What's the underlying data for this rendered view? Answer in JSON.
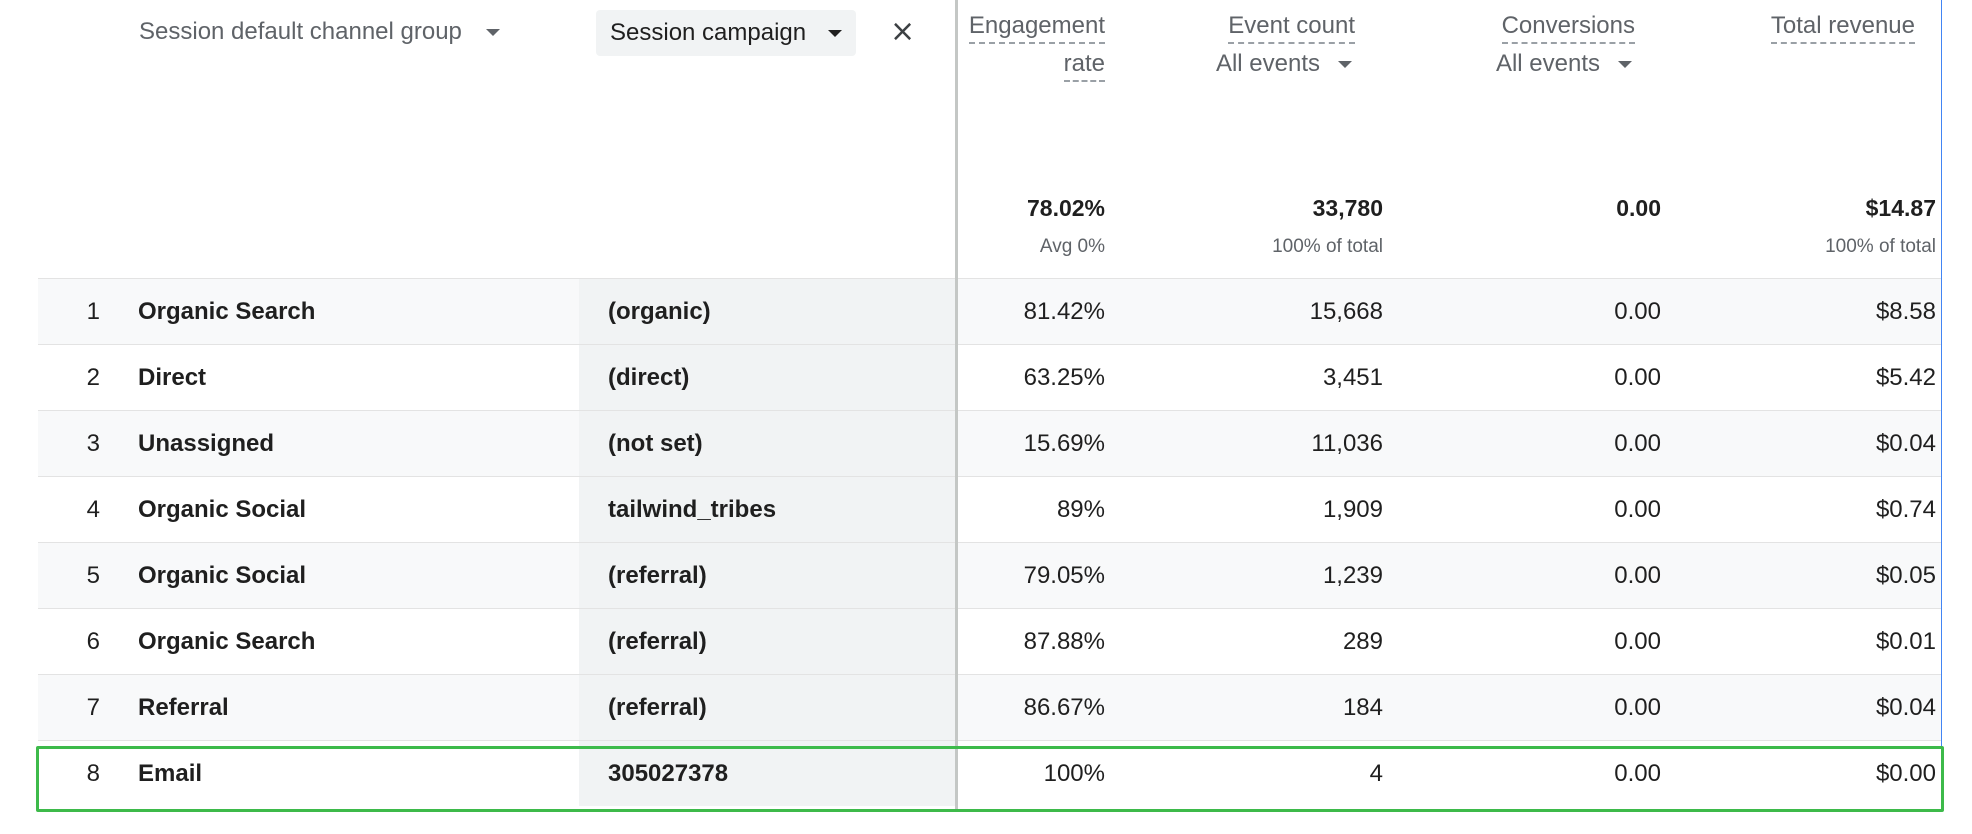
{
  "header": {
    "dim1_label": "Session default channel group",
    "dim2_label": "Session campaign",
    "metrics": [
      {
        "title_line1": "Engagement",
        "title_line2": "rate"
      },
      {
        "title_line1": "Event count",
        "sub": "All events"
      },
      {
        "title_line1": "Conversions",
        "sub": "All events"
      },
      {
        "title_line1": "Total revenue"
      }
    ]
  },
  "totals": [
    {
      "value": "78.02%",
      "sub": "Avg 0%"
    },
    {
      "value": "33,780",
      "sub": "100% of total"
    },
    {
      "value": "0.00",
      "sub": ""
    },
    {
      "value": "$14.87",
      "sub": "100% of total"
    }
  ],
  "rows": [
    {
      "idx": "1",
      "channel": "Organic Search",
      "campaign": "(organic)",
      "engagement": "81.42%",
      "events": "15,668",
      "conversions": "0.00",
      "revenue": "$8.58"
    },
    {
      "idx": "2",
      "channel": "Direct",
      "campaign": "(direct)",
      "engagement": "63.25%",
      "events": "3,451",
      "conversions": "0.00",
      "revenue": "$5.42"
    },
    {
      "idx": "3",
      "channel": "Unassigned",
      "campaign": "(not set)",
      "engagement": "15.69%",
      "events": "11,036",
      "conversions": "0.00",
      "revenue": "$0.04"
    },
    {
      "idx": "4",
      "channel": "Organic Social",
      "campaign": "tailwind_tribes",
      "engagement": "89%",
      "events": "1,909",
      "conversions": "0.00",
      "revenue": "$0.74"
    },
    {
      "idx": "5",
      "channel": "Organic Social",
      "campaign": "(referral)",
      "engagement": "79.05%",
      "events": "1,239",
      "conversions": "0.00",
      "revenue": "$0.05"
    },
    {
      "idx": "6",
      "channel": "Organic Search",
      "campaign": "(referral)",
      "engagement": "87.88%",
      "events": "289",
      "conversions": "0.00",
      "revenue": "$0.01"
    },
    {
      "idx": "7",
      "channel": "Referral",
      "campaign": "(referral)",
      "engagement": "86.67%",
      "events": "184",
      "conversions": "0.00",
      "revenue": "$0.04"
    },
    {
      "idx": "8",
      "channel": "Email",
      "campaign": "305027378",
      "engagement": "100%",
      "events": "4",
      "conversions": "0.00",
      "revenue": "$0.00"
    }
  ],
  "highlight_color": "#3dba4a",
  "icons": {
    "dropdown": "caret-down-icon",
    "remove": "close-icon"
  }
}
